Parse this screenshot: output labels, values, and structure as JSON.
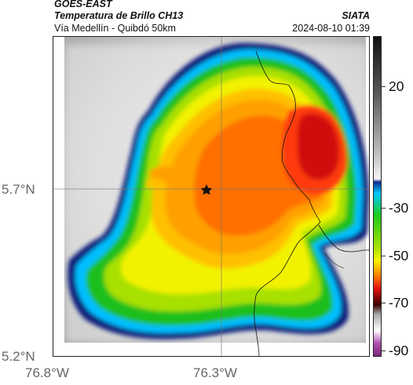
{
  "header": {
    "satellite": "GOES-EAST",
    "product": "Temperatura de Brillo CH13",
    "organization": "SIATA",
    "route": "Vía Medellín - Quibdó 50km",
    "timestamp": "2024-08-10 01:39"
  },
  "axes": {
    "x_ticks": [
      "76.8°W",
      "76.3°W"
    ],
    "y_ticks": [
      "5.7°N",
      "5.2°N"
    ]
  },
  "colorbar": {
    "ticks": [
      "20",
      "-30",
      "-50",
      "-70",
      "-90"
    ],
    "scale_colors": [
      "#111111",
      "#9a9a9a",
      "#f5f5f5",
      "#0a2a8a",
      "#00c8ff",
      "#1ccc1c",
      "#f5f500",
      "#ff7a00",
      "#d01010",
      "#3a0000",
      "#ffffff",
      "#8a2a8a"
    ]
  },
  "map": {
    "marker": "star-icon",
    "cloud_colors": [
      "#0a1a7a",
      "#00bfff",
      "#18c018",
      "#e8f000",
      "#ffa000",
      "#ff6a00",
      "#e01010"
    ]
  }
}
